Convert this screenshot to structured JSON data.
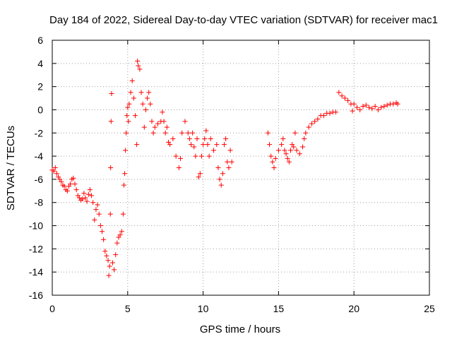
{
  "chart_data": {
    "type": "scatter",
    "title": "Day 184 of 2022, Sidereal Day-to-day VTEC variation (SDTVAR) for receiver mac1",
    "xlabel": "GPS time / hours",
    "ylabel": "SDTVAR / TECUs",
    "xlim": [
      0,
      25
    ],
    "ylim": [
      -16,
      6
    ],
    "x_ticks": [
      "0",
      "5",
      "10",
      "15",
      "20",
      "25"
    ],
    "y_ticks": [
      "-16",
      "-14",
      "-12",
      "-10",
      "-8",
      "-6",
      "-4",
      "-2",
      "0",
      "2",
      "4",
      "6"
    ],
    "grid": true,
    "marker": "+",
    "color": "#ff0000",
    "series": [
      {
        "name": "mac1",
        "points": [
          [
            0.0,
            -5.2
          ],
          [
            0.1,
            -5.3
          ],
          [
            0.2,
            -5.0
          ],
          [
            0.3,
            -5.5
          ],
          [
            0.4,
            -5.8
          ],
          [
            0.5,
            -6.0
          ],
          [
            0.6,
            -6.2
          ],
          [
            0.7,
            -6.5
          ],
          [
            0.8,
            -6.6
          ],
          [
            0.9,
            -6.9
          ],
          [
            1.0,
            -7.0
          ],
          [
            1.1,
            -6.6
          ],
          [
            1.2,
            -6.4
          ],
          [
            1.3,
            -6.0
          ],
          [
            1.4,
            -5.9
          ],
          [
            1.5,
            -6.4
          ],
          [
            1.6,
            -6.9
          ],
          [
            1.7,
            -7.4
          ],
          [
            1.8,
            -7.6
          ],
          [
            1.9,
            -7.8
          ],
          [
            2.0,
            -7.7
          ],
          [
            2.1,
            -7.2
          ],
          [
            2.2,
            -7.6
          ],
          [
            2.3,
            -7.9
          ],
          [
            2.4,
            -7.3
          ],
          [
            2.5,
            -6.9
          ],
          [
            2.6,
            -7.4
          ],
          [
            2.7,
            -8.0
          ],
          [
            2.8,
            -9.5
          ],
          [
            2.9,
            -8.6
          ],
          [
            3.0,
            -8.2
          ],
          [
            3.1,
            -9.0
          ],
          [
            3.2,
            -10.0
          ],
          [
            3.3,
            -10.5
          ],
          [
            3.4,
            -11.2
          ],
          [
            3.5,
            -12.2
          ],
          [
            3.6,
            -12.6
          ],
          [
            3.7,
            -13.0
          ],
          [
            3.75,
            -14.3
          ],
          [
            3.8,
            -13.5
          ],
          [
            3.85,
            -9.0
          ],
          [
            3.87,
            -5.0
          ],
          [
            3.9,
            -1.0
          ],
          [
            3.93,
            1.4
          ],
          [
            4.0,
            -13.2
          ],
          [
            4.1,
            -13.8
          ],
          [
            4.2,
            -12.5
          ],
          [
            4.3,
            -11.5
          ],
          [
            4.4,
            -11.0
          ],
          [
            4.5,
            -10.8
          ],
          [
            4.6,
            -10.5
          ],
          [
            4.7,
            -9.0
          ],
          [
            4.75,
            -6.5
          ],
          [
            4.8,
            -5.5
          ],
          [
            4.85,
            -3.5
          ],
          [
            4.9,
            -2.0
          ],
          [
            4.95,
            -0.5
          ],
          [
            5.0,
            0.2
          ],
          [
            5.05,
            -1.0
          ],
          [
            5.1,
            0.5
          ],
          [
            5.2,
            1.5
          ],
          [
            5.3,
            2.5
          ],
          [
            5.4,
            1.0
          ],
          [
            5.5,
            -0.5
          ],
          [
            5.6,
            -3.0
          ],
          [
            5.65,
            4.2
          ],
          [
            5.7,
            3.8
          ],
          [
            5.8,
            3.5
          ],
          [
            5.9,
            1.5
          ],
          [
            6.0,
            0.5
          ],
          [
            6.1,
            -1.5
          ],
          [
            6.2,
            0.0
          ],
          [
            6.3,
            1.0
          ],
          [
            6.4,
            1.5
          ],
          [
            6.5,
            0.5
          ],
          [
            6.6,
            -1.0
          ],
          [
            6.7,
            -2.0
          ],
          [
            6.8,
            -1.5
          ],
          [
            7.0,
            -1.2
          ],
          [
            7.2,
            -1.0
          ],
          [
            7.3,
            -0.2
          ],
          [
            7.4,
            -1.0
          ],
          [
            7.5,
            -2.0
          ],
          [
            7.6,
            -1.5
          ],
          [
            7.7,
            -2.8
          ],
          [
            7.8,
            -3.0
          ],
          [
            8.0,
            -2.5
          ],
          [
            8.2,
            -4.0
          ],
          [
            8.4,
            -5.0
          ],
          [
            8.5,
            -4.2
          ],
          [
            8.6,
            -2.0
          ],
          [
            8.8,
            -1.0
          ],
          [
            9.0,
            -2.0
          ],
          [
            9.1,
            -2.5
          ],
          [
            9.2,
            -3.0
          ],
          [
            9.3,
            -2.0
          ],
          [
            9.4,
            -3.2
          ],
          [
            9.5,
            -4.0
          ],
          [
            9.6,
            -2.5
          ],
          [
            9.7,
            -5.8
          ],
          [
            9.8,
            -5.5
          ],
          [
            9.9,
            -4.0
          ],
          [
            10.0,
            -3.0
          ],
          [
            10.1,
            -2.5
          ],
          [
            10.2,
            -1.8
          ],
          [
            10.3,
            -3.0
          ],
          [
            10.4,
            -4.0
          ],
          [
            10.5,
            -2.5
          ],
          [
            10.7,
            -3.5
          ],
          [
            10.9,
            -3.0
          ],
          [
            11.0,
            -5.0
          ],
          [
            11.1,
            -6.0
          ],
          [
            11.2,
            -6.5
          ],
          [
            11.3,
            -5.5
          ],
          [
            11.4,
            -3.0
          ],
          [
            11.5,
            -2.5
          ],
          [
            11.6,
            -4.5
          ],
          [
            11.7,
            -5.0
          ],
          [
            11.8,
            -3.5
          ],
          [
            11.9,
            -4.5
          ],
          [
            14.3,
            -2.0
          ],
          [
            14.4,
            -3.0
          ],
          [
            14.5,
            -4.0
          ],
          [
            14.6,
            -4.5
          ],
          [
            14.7,
            -5.0
          ],
          [
            14.8,
            -4.2
          ],
          [
            15.0,
            -3.5
          ],
          [
            15.2,
            -3.0
          ],
          [
            15.3,
            -2.5
          ],
          [
            15.4,
            -3.5
          ],
          [
            15.5,
            -3.8
          ],
          [
            15.6,
            -4.2
          ],
          [
            15.7,
            -4.5
          ],
          [
            15.8,
            -3.5
          ],
          [
            15.9,
            -3.0
          ],
          [
            16.0,
            -3.2
          ],
          [
            16.1,
            -2.0
          ],
          [
            16.2,
            -3.5
          ],
          [
            16.4,
            -3.8
          ],
          [
            16.6,
            -3.2
          ],
          [
            16.7,
            -2.5
          ],
          [
            16.8,
            -2.0
          ],
          [
            17.0,
            -1.5
          ],
          [
            17.2,
            -1.2
          ],
          [
            17.4,
            -1.0
          ],
          [
            17.6,
            -0.8
          ],
          [
            17.8,
            -0.5
          ],
          [
            18.0,
            -0.5
          ],
          [
            18.2,
            -0.3
          ],
          [
            18.4,
            -0.3
          ],
          [
            18.6,
            -0.2
          ],
          [
            18.8,
            -0.2
          ],
          [
            19.0,
            1.5
          ],
          [
            19.2,
            1.2
          ],
          [
            19.4,
            1.0
          ],
          [
            19.6,
            0.8
          ],
          [
            19.8,
            0.5
          ],
          [
            19.9,
            -0.1
          ],
          [
            20.0,
            0.5
          ],
          [
            20.2,
            0.2
          ],
          [
            20.4,
            0.0
          ],
          [
            20.6,
            0.3
          ],
          [
            20.8,
            0.4
          ],
          [
            21.0,
            0.2
          ],
          [
            21.2,
            0.1
          ],
          [
            21.4,
            0.3
          ],
          [
            21.6,
            0.0
          ],
          [
            21.8,
            0.2
          ],
          [
            22.0,
            0.3
          ],
          [
            22.2,
            0.4
          ],
          [
            22.4,
            0.5
          ],
          [
            22.6,
            0.5
          ],
          [
            22.8,
            0.6
          ],
          [
            22.9,
            0.5
          ]
        ]
      }
    ]
  }
}
